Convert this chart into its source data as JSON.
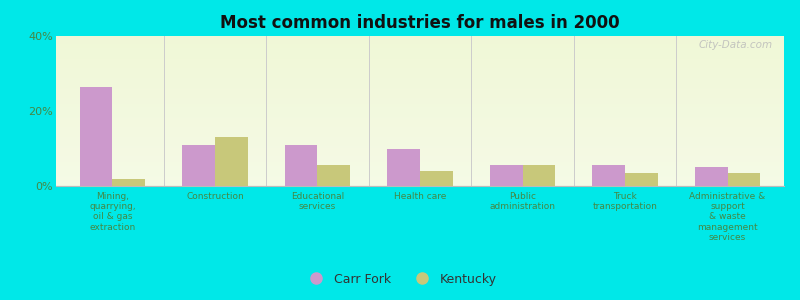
{
  "title": "Most common industries for males in 2000",
  "categories": [
    "Mining,\nquarrying,\noil & gas\nextraction",
    "Construction",
    "Educational\nservices",
    "Health care",
    "Public\nadministration",
    "Truck\ntransportation",
    "Administrative &\nsupport\n& waste\nmanagement\nservices"
  ],
  "carr_fork": [
    26.5,
    11.0,
    11.0,
    10.0,
    5.5,
    5.5,
    5.0
  ],
  "kentucky": [
    2.0,
    13.0,
    5.5,
    4.0,
    5.5,
    3.5,
    3.5
  ],
  "carr_fork_color": "#cc99cc",
  "kentucky_color": "#c8c87a",
  "ylim": [
    0,
    40
  ],
  "yticks": [
    0,
    20,
    40
  ],
  "ytick_labels": [
    "0%",
    "20%",
    "40%"
  ],
  "outer_bg": "#00e8e8",
  "bar_width": 0.32,
  "legend_labels": [
    "Carr Fork",
    "Kentucky"
  ],
  "watermark": "City-Data.com"
}
